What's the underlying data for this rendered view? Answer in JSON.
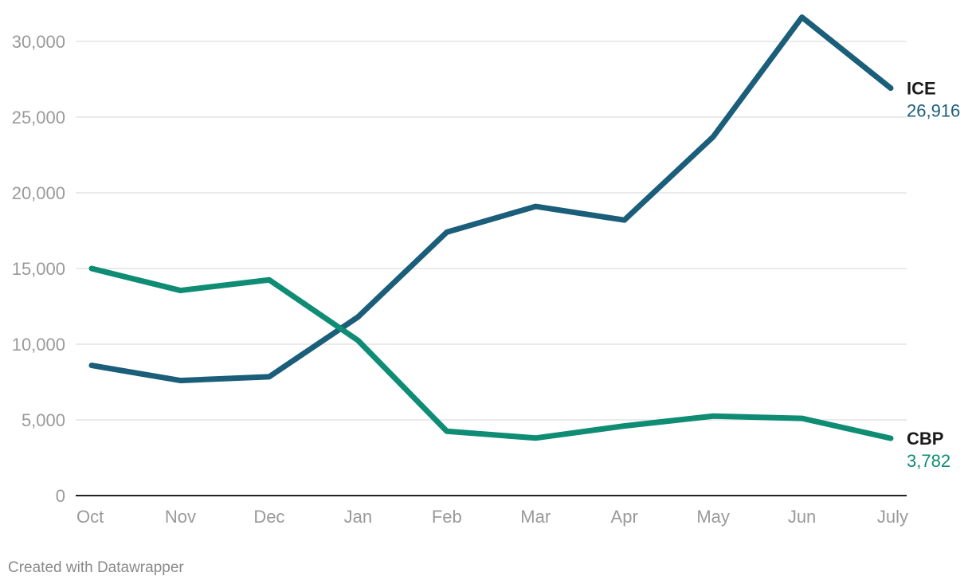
{
  "chart_data": {
    "type": "line",
    "categories": [
      "Oct",
      "Nov",
      "Dec",
      "Jan",
      "Feb",
      "Mar",
      "Apr",
      "May",
      "Jun",
      "July"
    ],
    "ylim": [
      0,
      30000
    ],
    "yticks": [
      0,
      5000,
      10000,
      15000,
      20000,
      25000,
      30000
    ],
    "ytick_labels": [
      "0",
      "5,000",
      "10,000",
      "15,000",
      "20,000",
      "25,000",
      "30,000"
    ],
    "grid": true,
    "series": [
      {
        "name": "ICE",
        "color": "#1b5e7a",
        "values": [
          8600,
          7600,
          7850,
          11800,
          17400,
          19100,
          18200,
          23700,
          31600,
          26916
        ],
        "end_label": "26,916"
      },
      {
        "name": "CBP",
        "color": "#0f8c74",
        "values": [
          15000,
          13550,
          14250,
          10250,
          4250,
          3800,
          4600,
          5250,
          5100,
          3782
        ],
        "end_label": "3,782"
      }
    ]
  },
  "footer": {
    "credit": "Created with Datawrapper"
  }
}
